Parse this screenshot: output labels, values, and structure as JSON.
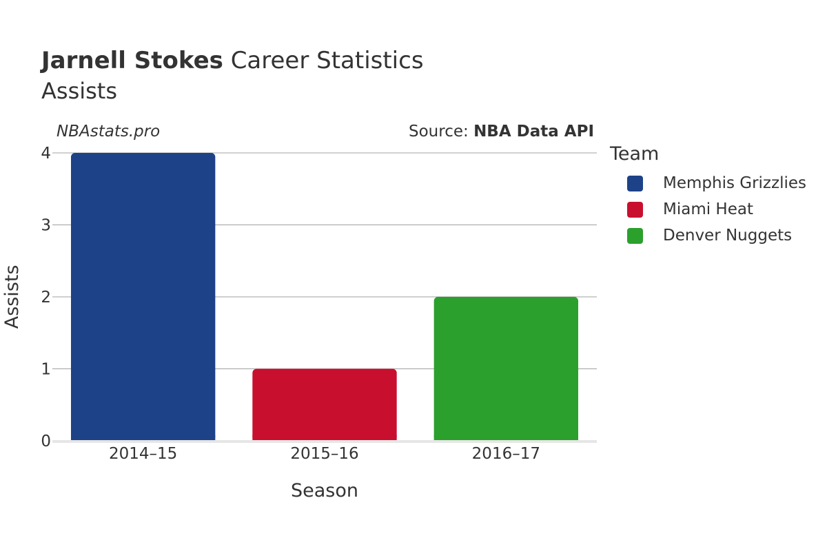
{
  "header": {
    "player_name": "Jarnell Stokes",
    "title_rest": "Career Statistics",
    "subtitle": "Assists",
    "watermark": "NBAstats.pro",
    "source_prefix": "Source: ",
    "source_name": "NBA Data API"
  },
  "legend": {
    "title": "Team",
    "items": [
      {
        "label": "Memphis Grizzlies",
        "color": "#1d4287"
      },
      {
        "label": "Miami Heat",
        "color": "#c8102e"
      },
      {
        "label": "Denver Nuggets",
        "color": "#2ca02c"
      }
    ]
  },
  "chart_data": {
    "type": "bar",
    "title": "Jarnell Stokes Career Statistics",
    "subtitle": "Assists",
    "xlabel": "Season",
    "ylabel": "Assists",
    "categories": [
      "2014–15",
      "2015–16",
      "2016–17"
    ],
    "values": [
      4,
      1,
      2
    ],
    "bar_teams": [
      "Memphis Grizzlies",
      "Miami Heat",
      "Denver Nuggets"
    ],
    "colors": [
      "#1d4287",
      "#c8102e",
      "#2ca02c"
    ],
    "ylim": [
      0,
      4
    ],
    "yticks": [
      "0",
      "1",
      "2",
      "3",
      "4"
    ],
    "grid": true,
    "legend_position": "right"
  }
}
